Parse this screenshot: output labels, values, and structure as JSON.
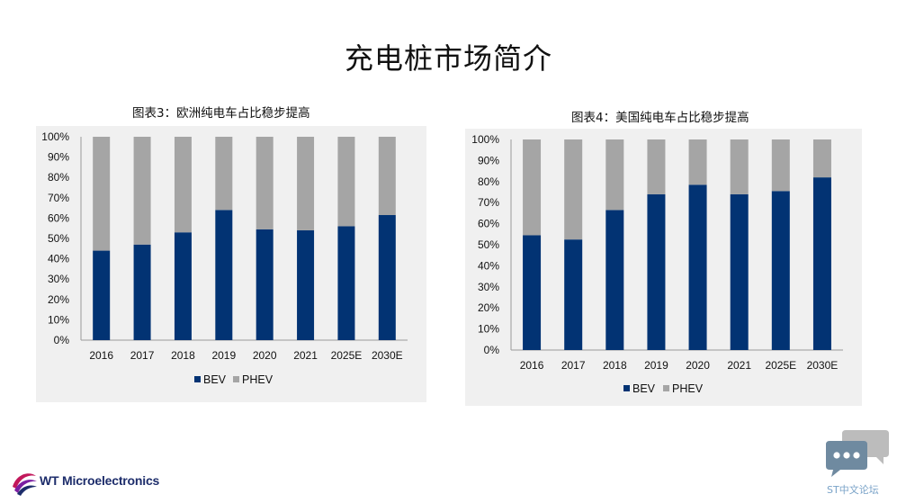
{
  "slide": {
    "title": "充电桩市场简介"
  },
  "colors": {
    "bev": "#023373",
    "phev": "#a5a5a5",
    "panel": "#f0f0f0"
  },
  "chart_data": [
    {
      "type": "bar",
      "stacked": true,
      "title": "图表3：欧洲纯电车占比稳步提高",
      "categories": [
        "2016",
        "2017",
        "2018",
        "2019",
        "2020",
        "2021",
        "2025E",
        "2030E"
      ],
      "series": [
        {
          "name": "BEV",
          "values": [
            44,
            47,
            53,
            64,
            54.5,
            54,
            56,
            61.5
          ]
        },
        {
          "name": "PHEV",
          "values": [
            56,
            53,
            47,
            36,
            45.5,
            46,
            44,
            38.5
          ]
        }
      ],
      "yticks": [
        "0%",
        "10%",
        "20%",
        "30%",
        "40%",
        "50%",
        "60%",
        "70%",
        "80%",
        "90%",
        "100%"
      ],
      "ylim": [
        0,
        100
      ],
      "legend": "bottom",
      "grid": false
    },
    {
      "type": "bar",
      "stacked": true,
      "title": "图表4：美国纯电车占比稳步提高",
      "categories": [
        "2016",
        "2017",
        "2018",
        "2019",
        "2020",
        "2021",
        "2025E",
        "2030E"
      ],
      "series": [
        {
          "name": "BEV",
          "values": [
            54.5,
            52.5,
            66.5,
            74,
            78.5,
            74,
            75.5,
            82
          ]
        },
        {
          "name": "PHEV",
          "values": [
            45.5,
            47.5,
            33.5,
            26,
            21.5,
            26,
            24.5,
            18
          ]
        }
      ],
      "yticks": [
        "0%",
        "10%",
        "20%",
        "30%",
        "40%",
        "50%",
        "60%",
        "70%",
        "80%",
        "90%",
        "100%"
      ],
      "ylim": [
        0,
        100
      ],
      "legend": "bottom",
      "grid": false
    }
  ],
  "footer": {
    "logo_text": "WT Microelectronics",
    "forum_text": "ST中文论坛"
  }
}
